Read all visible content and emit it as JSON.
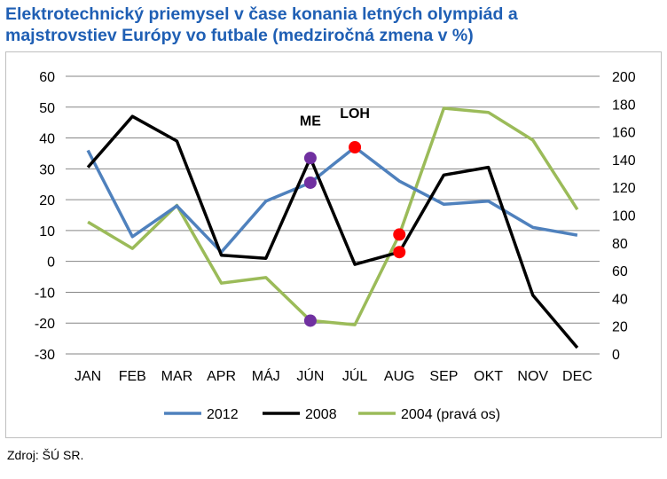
{
  "title_line1": "Elektrotechnický priemysel v čase konania letných olympiád a",
  "title_line2": "majstrovstiev Európy vo futbale (medziročná zmena v %)",
  "source": "Zdroj: ŠÚ SR.",
  "colors": {
    "s2012": "#4f81bd",
    "s2008": "#000000",
    "s2004": "#9bbb59",
    "purple": "#7030a0",
    "red": "#ff0000",
    "title": "#1f5fb4"
  },
  "chart_data": {
    "type": "line",
    "title": "Elektrotechnický priemysel v čase konania letných olympiád a majstrovstiev Európy vo futbale (medziročná zmena v %)",
    "categories": [
      "JAN",
      "FEB",
      "MAR",
      "APR",
      "MÁJ",
      "JÚN",
      "JÚL",
      "AUG",
      "SEP",
      "OKT",
      "NOV",
      "DEC"
    ],
    "y_left": {
      "min": -30,
      "max": 60,
      "step": 10,
      "ticks": [
        "60",
        "50",
        "40",
        "30",
        "20",
        "10",
        "0",
        "-10",
        "-20",
        "-30"
      ]
    },
    "y_right": {
      "min": 0,
      "max": 200,
      "step": 20,
      "ticks": [
        "200",
        "180",
        "160",
        "140",
        "120",
        "100",
        "80",
        "60",
        "40",
        "20",
        "0"
      ]
    },
    "grid": "horizontal",
    "legend_position": "bottom",
    "series": [
      {
        "name": "2012",
        "axis": "left",
        "color": "#4f81bd",
        "values": [
          36,
          8,
          18,
          3,
          19.5,
          25.5,
          37,
          26,
          18.5,
          19.5,
          11,
          8.5
        ]
      },
      {
        "name": "2008",
        "axis": "left",
        "color": "#000000",
        "values": [
          30.5,
          47,
          39,
          2,
          1,
          33.5,
          -1,
          3,
          28,
          30.5,
          -11,
          -28
        ]
      },
      {
        "name": "2004 (pravá os)",
        "axis": "right",
        "color": "#9bbb59",
        "values": [
          95,
          76,
          107,
          51,
          55,
          24,
          21,
          86,
          177,
          174,
          154,
          104
        ]
      }
    ],
    "annotations": [
      {
        "text": "ME",
        "category": "JÚN",
        "value": 44,
        "axis": "left"
      },
      {
        "text": "LOH",
        "category": "JÚL",
        "value": 46.5,
        "axis": "left"
      }
    ],
    "markers": [
      {
        "category": "JÚN",
        "series": "2012",
        "color": "#7030a0"
      },
      {
        "category": "JÚN",
        "series": "2008",
        "color": "#7030a0"
      },
      {
        "category": "JÚN",
        "series": "2004 (pravá os)",
        "color": "#7030a0"
      },
      {
        "category": "JÚL",
        "series": "2012",
        "color": "#ff0000"
      },
      {
        "category": "AUG",
        "series": "2008",
        "color": "#ff0000"
      },
      {
        "category": "AUG",
        "series": "2004 (pravá os)",
        "color": "#ff0000"
      }
    ]
  }
}
